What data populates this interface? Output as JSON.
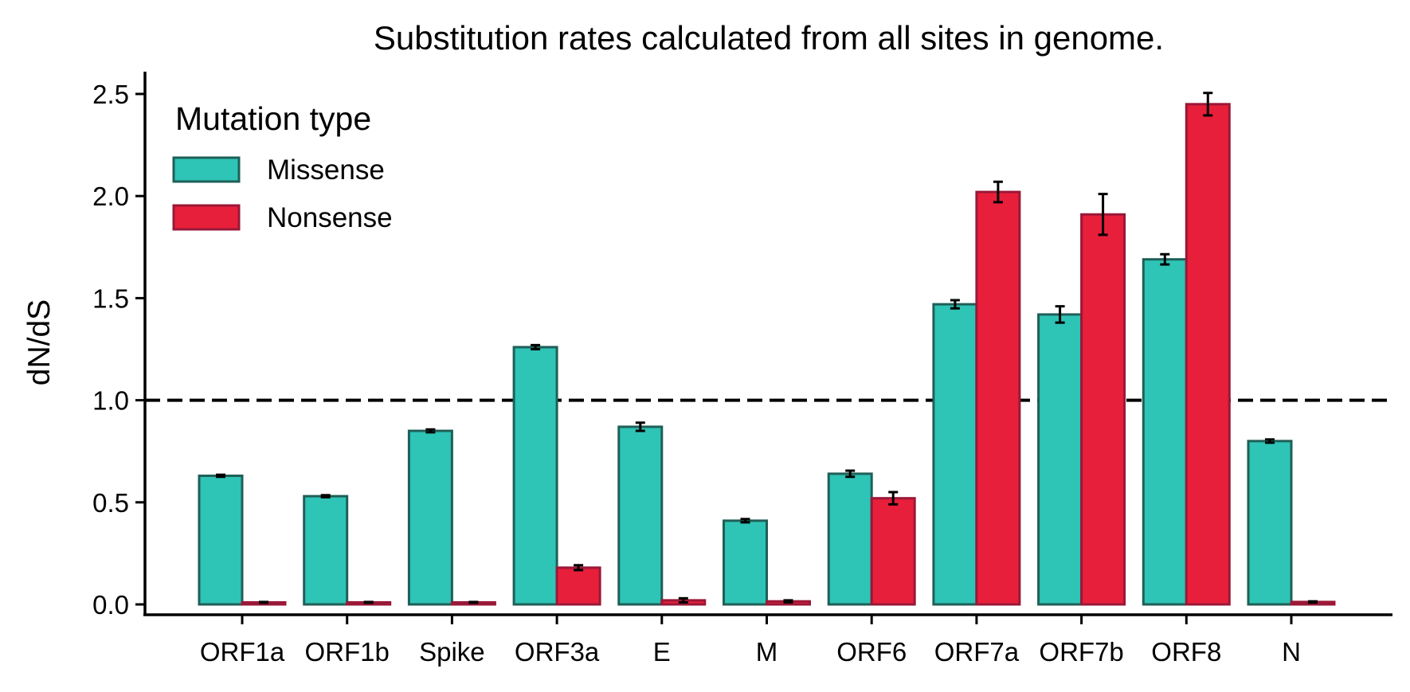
{
  "chart_data": {
    "type": "bar",
    "title": "Substitution rates calculated from all sites in genome.",
    "xlabel": "",
    "ylabel": "dN/dS",
    "ylim": [
      0,
      2.6
    ],
    "yticks": [
      "0.0",
      "0.5",
      "1.0",
      "1.5",
      "2.0",
      "2.5"
    ],
    "categories": [
      "ORF1a",
      "ORF1b",
      "Spike",
      "ORF3a",
      "E",
      "M",
      "ORF6",
      "ORF7a",
      "ORF7b",
      "ORF8",
      "N"
    ],
    "legend": {
      "title": "Mutation type",
      "position": "upper-left"
    },
    "reference_line": {
      "y": 1.0,
      "style": "dashed"
    },
    "grid": false,
    "series": [
      {
        "name": "Missense",
        "color": "#2ec4b6",
        "edge": "#1f5f57",
        "values": [
          0.63,
          0.53,
          0.85,
          1.26,
          0.87,
          0.41,
          0.64,
          1.47,
          1.42,
          1.69,
          0.8
        ],
        "errors": [
          0.005,
          0.005,
          0.007,
          0.01,
          0.02,
          0.008,
          0.015,
          0.02,
          0.04,
          0.025,
          0.008
        ]
      },
      {
        "name": "Nonsense",
        "color": "#e81f3a",
        "edge": "#9a1838",
        "values": [
          0.01,
          0.01,
          0.01,
          0.18,
          0.02,
          0.015,
          0.52,
          2.02,
          1.91,
          2.45,
          0.012
        ],
        "errors": [
          0.002,
          0.002,
          0.002,
          0.012,
          0.01,
          0.005,
          0.03,
          0.05,
          0.1,
          0.055,
          0.003
        ]
      }
    ]
  }
}
